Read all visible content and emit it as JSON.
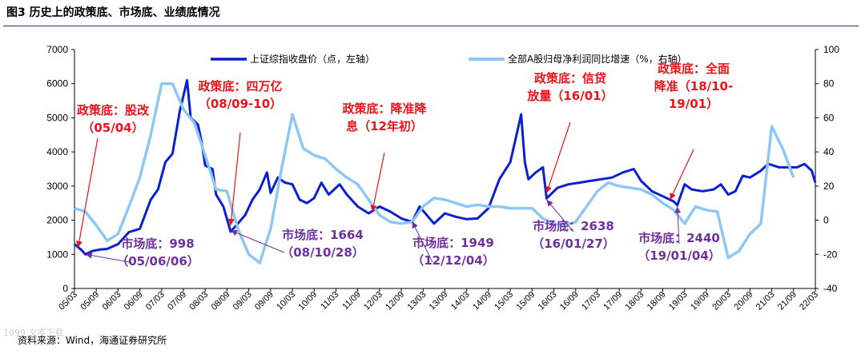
{
  "figure": {
    "title": "图3   历史上的政策底、市场底、业绩底情况",
    "source": "资料来源：Wind，海通证券研究所",
    "watermark": "1099 文库下载"
  },
  "chart_data": {
    "type": "line",
    "title": "",
    "left_axis": {
      "label": "",
      "min": 0,
      "max": 7000,
      "ticks": [
        0,
        1000,
        2000,
        3000,
        4000,
        5000,
        6000,
        7000
      ]
    },
    "right_axis": {
      "label": "",
      "min": -40,
      "max": 100,
      "ticks": [
        -40,
        -20,
        0,
        20,
        40,
        60,
        80,
        100
      ]
    },
    "x_axis": {
      "start": "2005-03",
      "end": "2022-03",
      "tick_labels": [
        "05/03",
        "05/09",
        "06/03",
        "06/09",
        "07/03",
        "07/09",
        "08/03",
        "08/09",
        "09/03",
        "09/09",
        "10/03",
        "10/09",
        "11/03",
        "11/09",
        "12/03",
        "12/09",
        "13/03",
        "13/09",
        "14/03",
        "14/09",
        "15/03",
        "15/09",
        "16/03",
        "16/09",
        "17/03",
        "17/09",
        "18/03",
        "18/09",
        "19/03",
        "19/09",
        "20/03",
        "20/09",
        "21/03",
        "21/09",
        "22/03"
      ]
    },
    "legend_position": "top",
    "series": [
      {
        "name": "上证综指收盘价（点，左轴）",
        "axis": "left",
        "color": "#0a1fd0",
        "points": [
          [
            "2005-03",
            1300
          ],
          [
            "2005-05",
            1120
          ],
          [
            "2005-06",
            998
          ],
          [
            "2005-08",
            1100
          ],
          [
            "2005-10",
            1140
          ],
          [
            "2005-12",
            1160
          ],
          [
            "2006-03",
            1300
          ],
          [
            "2006-06",
            1650
          ],
          [
            "2006-09",
            1750
          ],
          [
            "2006-12",
            2600
          ],
          [
            "2007-02",
            2900
          ],
          [
            "2007-04",
            3700
          ],
          [
            "2007-06",
            3950
          ],
          [
            "2007-08",
            5200
          ],
          [
            "2007-10",
            6100
          ],
          [
            "2007-11",
            5000
          ],
          [
            "2008-01",
            4800
          ],
          [
            "2008-02",
            4300
          ],
          [
            "2008-03",
            3600
          ],
          [
            "2008-05",
            3500
          ],
          [
            "2008-06",
            2750
          ],
          [
            "2008-08",
            2400
          ],
          [
            "2008-10",
            1664
          ],
          [
            "2008-12",
            1900
          ],
          [
            "2009-02",
            2150
          ],
          [
            "2009-04",
            2600
          ],
          [
            "2009-06",
            2900
          ],
          [
            "2009-08",
            3400
          ],
          [
            "2009-09",
            2800
          ],
          [
            "2009-11",
            3250
          ],
          [
            "2010-01",
            3100
          ],
          [
            "2010-03",
            3050
          ],
          [
            "2010-05",
            2600
          ],
          [
            "2010-07",
            2500
          ],
          [
            "2010-09",
            2650
          ],
          [
            "2010-11",
            3100
          ],
          [
            "2011-01",
            2750
          ],
          [
            "2011-04",
            3050
          ],
          [
            "2011-06",
            2750
          ],
          [
            "2011-09",
            2400
          ],
          [
            "2011-12",
            2200
          ],
          [
            "2012-03",
            2400
          ],
          [
            "2012-06",
            2250
          ],
          [
            "2012-09",
            2050
          ],
          [
            "2012-12",
            1949
          ],
          [
            "2013-02",
            2400
          ],
          [
            "2013-06",
            1900
          ],
          [
            "2013-09",
            2200
          ],
          [
            "2013-12",
            2100
          ],
          [
            "2014-03",
            2030
          ],
          [
            "2014-06",
            2050
          ],
          [
            "2014-09",
            2350
          ],
          [
            "2014-12",
            3200
          ],
          [
            "2015-03",
            3700
          ],
          [
            "2015-06",
            5100
          ],
          [
            "2015-07",
            3700
          ],
          [
            "2015-08",
            3200
          ],
          [
            "2015-10",
            3400
          ],
          [
            "2015-12",
            3550
          ],
          [
            "2016-01",
            2638
          ],
          [
            "2016-04",
            2950
          ],
          [
            "2016-07",
            3050
          ],
          [
            "2016-10",
            3100
          ],
          [
            "2017-01",
            3150
          ],
          [
            "2017-04",
            3200
          ],
          [
            "2017-07",
            3250
          ],
          [
            "2017-10",
            3400
          ],
          [
            "2018-01",
            3500
          ],
          [
            "2018-03",
            3150
          ],
          [
            "2018-06",
            2850
          ],
          [
            "2018-09",
            2700
          ],
          [
            "2018-12",
            2550
          ],
          [
            "2019-01",
            2440
          ],
          [
            "2019-03",
            3050
          ],
          [
            "2019-05",
            2900
          ],
          [
            "2019-08",
            2850
          ],
          [
            "2019-11",
            2900
          ],
          [
            "2020-01",
            3050
          ],
          [
            "2020-03",
            2750
          ],
          [
            "2020-05",
            2850
          ],
          [
            "2020-07",
            3300
          ],
          [
            "2020-09",
            3250
          ],
          [
            "2020-12",
            3450
          ],
          [
            "2021-02",
            3650
          ],
          [
            "2021-05",
            3550
          ],
          [
            "2021-08",
            3550
          ],
          [
            "2021-10",
            3550
          ],
          [
            "2021-12",
            3650
          ],
          [
            "2022-02",
            3450
          ],
          [
            "2022-03",
            3100
          ]
        ]
      },
      {
        "name": "全部A股归母净利润同比增速（%，右轴）",
        "axis": "right",
        "color": "#8ec8f2",
        "points": [
          [
            "2005-03",
            7
          ],
          [
            "2005-06",
            5
          ],
          [
            "2005-09",
            -3
          ],
          [
            "2005-12",
            -12
          ],
          [
            "2006-03",
            -8
          ],
          [
            "2006-06",
            8
          ],
          [
            "2006-09",
            25
          ],
          [
            "2006-12",
            50
          ],
          [
            "2007-03",
            80
          ],
          [
            "2007-06",
            80
          ],
          [
            "2007-09",
            65
          ],
          [
            "2007-12",
            57
          ],
          [
            "2008-03",
            38
          ],
          [
            "2008-06",
            18
          ],
          [
            "2008-09",
            17
          ],
          [
            "2008-12",
            -5
          ],
          [
            "2009-03",
            -20
          ],
          [
            "2009-06",
            -25
          ],
          [
            "2009-09",
            -5
          ],
          [
            "2009-12",
            30
          ],
          [
            "2010-03",
            62
          ],
          [
            "2010-06",
            42
          ],
          [
            "2010-09",
            38
          ],
          [
            "2010-12",
            36
          ],
          [
            "2011-03",
            30
          ],
          [
            "2011-06",
            25
          ],
          [
            "2011-09",
            21
          ],
          [
            "2011-12",
            12
          ],
          [
            "2012-03",
            3
          ],
          [
            "2012-06",
            -1
          ],
          [
            "2012-09",
            -2
          ],
          [
            "2012-12",
            -1
          ],
          [
            "2013-03",
            8
          ],
          [
            "2013-06",
            13
          ],
          [
            "2013-09",
            12
          ],
          [
            "2013-12",
            10
          ],
          [
            "2014-03",
            8
          ],
          [
            "2014-06",
            9
          ],
          [
            "2014-09",
            8
          ],
          [
            "2014-12",
            8
          ],
          [
            "2015-03",
            7
          ],
          [
            "2015-06",
            7
          ],
          [
            "2015-09",
            7
          ],
          [
            "2015-12",
            1
          ],
          [
            "2016-03",
            -2
          ],
          [
            "2016-06",
            -3
          ],
          [
            "2016-09",
            -1
          ],
          [
            "2016-12",
            8
          ],
          [
            "2017-03",
            17
          ],
          [
            "2017-06",
            22
          ],
          [
            "2017-09",
            20
          ],
          [
            "2017-12",
            19
          ],
          [
            "2018-03",
            18
          ],
          [
            "2018-06",
            15
          ],
          [
            "2018-09",
            10
          ],
          [
            "2018-12",
            6
          ],
          [
            "2019-03",
            -2
          ],
          [
            "2019-06",
            8
          ],
          [
            "2019-09",
            6
          ],
          [
            "2019-12",
            5
          ],
          [
            "2020-03",
            -22
          ],
          [
            "2020-06",
            -18
          ],
          [
            "2020-09",
            -8
          ],
          [
            "2020-12",
            -2
          ],
          [
            "2021-03",
            55
          ],
          [
            "2021-06",
            42
          ],
          [
            "2021-09",
            25
          ]
        ]
      }
    ],
    "annotations": [
      {
        "kind": "policy",
        "lines": [
          "政策底：股改",
          "（05/04）"
        ],
        "target": [
          "2005-04",
          1200
        ]
      },
      {
        "kind": "policy",
        "lines": [
          "政策底：四万亿",
          "（08/09-10）"
        ],
        "target": [
          "2008-10",
          1850
        ]
      },
      {
        "kind": "policy",
        "lines": [
          "政策底：降准降",
          "息（12年初）"
        ],
        "target": [
          "2012-01",
          2250
        ]
      },
      {
        "kind": "policy",
        "lines": [
          "政策底：信贷",
          "放量（16/01）"
        ],
        "target": [
          "2016-01",
          2800
        ]
      },
      {
        "kind": "policy",
        "lines": [
          "政策底：全面",
          "降准（18/10-",
          "19/01）"
        ],
        "target": [
          "2018-11",
          2600
        ]
      },
      {
        "kind": "market",
        "lines": [
          "市场底：998",
          "（05/06/06）"
        ],
        "target": [
          "2005-06",
          1000
        ]
      },
      {
        "kind": "market",
        "lines": [
          "市场底：1664",
          "（08/10/28）"
        ],
        "target": [
          "2008-10",
          1700
        ]
      },
      {
        "kind": "market",
        "lines": [
          "市场底：1949",
          "（12/12/04）"
        ],
        "target": [
          "2012-12",
          1960
        ]
      },
      {
        "kind": "market",
        "lines": [
          "市场底：2638",
          "（16/01/27）"
        ],
        "target": [
          "2016-01",
          2600
        ]
      },
      {
        "kind": "market",
        "lines": [
          "市场底：2440",
          "（19/01/04）"
        ],
        "target": [
          "2019-01",
          2400
        ]
      }
    ],
    "annotation_colors": {
      "policy": "#e8141b",
      "market": "#7030a0"
    }
  }
}
